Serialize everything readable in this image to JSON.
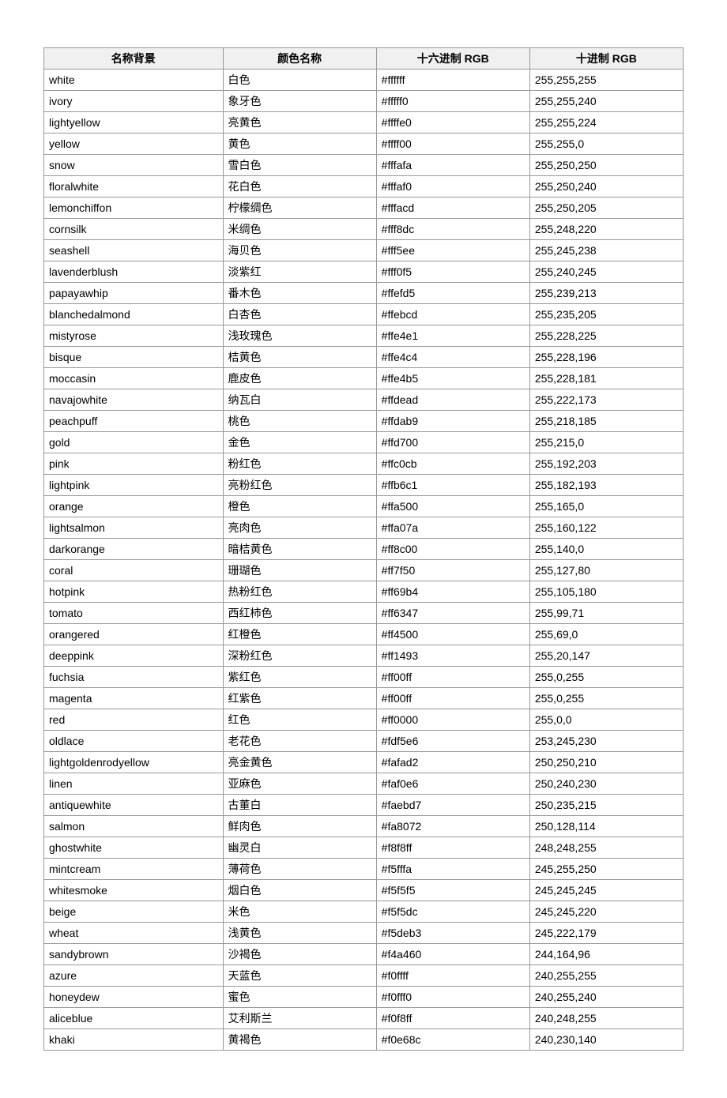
{
  "table": {
    "headers": [
      "名称背景",
      "颜色名称",
      "十六进制 RGB",
      "十进制 RGB"
    ],
    "header_bg": "#f0f0f0",
    "border_color": "#999999",
    "font_size": 14,
    "rows": [
      [
        "white",
        "白色",
        "#ffffff",
        "255,255,255"
      ],
      [
        "ivory",
        "象牙色",
        "#fffff0",
        "255,255,240"
      ],
      [
        "lightyellow",
        "亮黄色",
        "#ffffe0",
        "255,255,224"
      ],
      [
        "yellow",
        "黄色",
        "#ffff00",
        "255,255,0"
      ],
      [
        "snow",
        "雪白色",
        "#fffafa",
        "255,250,250"
      ],
      [
        "floralwhite",
        "花白色",
        "#fffaf0",
        "255,250,240"
      ],
      [
        "lemonchiffon",
        "柠檬绸色",
        "#fffacd",
        "255,250,205"
      ],
      [
        "cornsilk",
        "米绸色",
        "#fff8dc",
        "255,248,220"
      ],
      [
        "seashell",
        "海贝色",
        "#fff5ee",
        "255,245,238"
      ],
      [
        "lavenderblush",
        "淡紫红",
        "#fff0f5",
        "255,240,245"
      ],
      [
        "papayawhip",
        "番木色",
        "#ffefd5",
        "255,239,213"
      ],
      [
        "blanchedalmond",
        "白杏色",
        "#ffebcd",
        "255,235,205"
      ],
      [
        "mistyrose",
        "浅玫瑰色",
        "#ffe4e1",
        "255,228,225"
      ],
      [
        "bisque",
        "桔黄色",
        "#ffe4c4",
        "255,228,196"
      ],
      [
        "moccasin",
        "鹿皮色",
        "#ffe4b5",
        "255,228,181"
      ],
      [
        "navajowhite",
        "纳瓦白",
        "#ffdead",
        "255,222,173"
      ],
      [
        "peachpuff",
        "桃色",
        "#ffdab9",
        "255,218,185"
      ],
      [
        "gold",
        "金色",
        "#ffd700",
        "255,215,0"
      ],
      [
        "pink",
        "粉红色",
        "#ffc0cb",
        "255,192,203"
      ],
      [
        "lightpink",
        "亮粉红色",
        "#ffb6c1",
        "255,182,193"
      ],
      [
        "orange",
        "橙色",
        "#ffa500",
        "255,165,0"
      ],
      [
        "lightsalmon",
        "亮肉色",
        "#ffa07a",
        "255,160,122"
      ],
      [
        "darkorange",
        "暗桔黄色",
        "#ff8c00",
        "255,140,0"
      ],
      [
        "coral",
        "珊瑚色",
        "#ff7f50",
        "255,127,80"
      ],
      [
        "hotpink",
        "热粉红色",
        "#ff69b4",
        "255,105,180"
      ],
      [
        "tomato",
        "西红柿色",
        "#ff6347",
        "255,99,71"
      ],
      [
        "orangered",
        "红橙色",
        "#ff4500",
        "255,69,0"
      ],
      [
        "deeppink",
        "深粉红色",
        "#ff1493",
        "255,20,147"
      ],
      [
        "fuchsia",
        "紫红色",
        "#ff00ff",
        "255,0,255"
      ],
      [
        "magenta",
        "红紫色",
        "#ff00ff",
        "255,0,255"
      ],
      [
        "red",
        "红色",
        "#ff0000",
        "255,0,0"
      ],
      [
        "oldlace",
        "老花色",
        "#fdf5e6",
        "253,245,230"
      ],
      [
        "lightgoldenrodyellow",
        "亮金黄色",
        "#fafad2",
        "250,250,210"
      ],
      [
        "linen",
        "亚麻色",
        "#faf0e6",
        "250,240,230"
      ],
      [
        "antiquewhite",
        "古董白",
        "#faebd7",
        "250,235,215"
      ],
      [
        "salmon",
        "鲜肉色",
        "#fa8072",
        "250,128,114"
      ],
      [
        "ghostwhite",
        "幽灵白",
        "#f8f8ff",
        "248,248,255"
      ],
      [
        "mintcream",
        "薄荷色",
        "#f5fffa",
        "245,255,250"
      ],
      [
        "whitesmoke",
        "烟白色",
        "#f5f5f5",
        "245,245,245"
      ],
      [
        "beige",
        "米色",
        "#f5f5dc",
        "245,245,220"
      ],
      [
        "wheat",
        "浅黄色",
        "#f5deb3",
        "245,222,179"
      ],
      [
        "sandybrown",
        "沙褐色",
        "#f4a460",
        "244,164,96"
      ],
      [
        "azure",
        "天蓝色",
        "#f0ffff",
        "240,255,255"
      ],
      [
        "honeydew",
        "蜜色",
        "#f0fff0",
        "240,255,240"
      ],
      [
        "aliceblue",
        "艾利斯兰",
        "#f0f8ff",
        "240,248,255"
      ],
      [
        "khaki",
        "黄褐色",
        "#f0e68c",
        "240,230,140"
      ]
    ]
  }
}
